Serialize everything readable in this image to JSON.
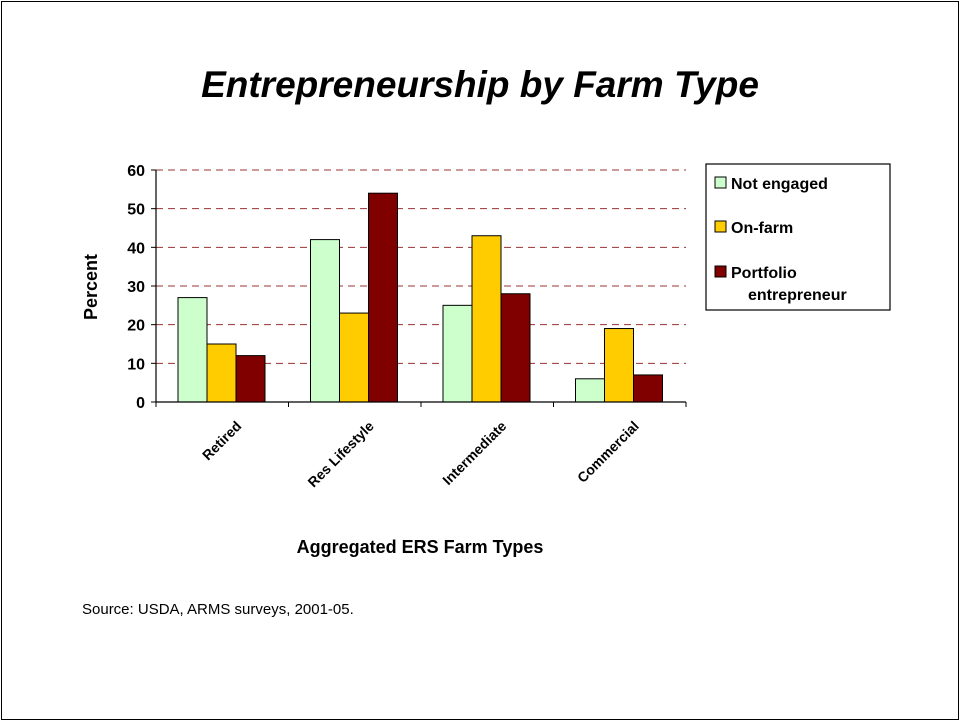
{
  "slide": {
    "title": "Entrepreneurship by Farm Type",
    "source": "Source: USDA, ARMS surveys, 2001-05."
  },
  "chart_data": {
    "type": "bar",
    "title": "",
    "xlabel": "Aggregated ERS Farm Types",
    "ylabel": "Percent",
    "categories": [
      "Retired",
      "Res Lifestyle",
      "Intermediate",
      "Commercial"
    ],
    "series": [
      {
        "name": "Not engaged",
        "color": "#ccffcc",
        "values": [
          27,
          42,
          25,
          6
        ]
      },
      {
        "name": "On-farm",
        "color": "#ffcc00",
        "values": [
          15,
          23,
          43,
          19
        ]
      },
      {
        "name": "Portfolio entrepreneur",
        "color": "#800000",
        "values": [
          12,
          54,
          28,
          7
        ]
      }
    ],
    "ylim": [
      0,
      60
    ],
    "yticks": [
      "0",
      "10",
      "20",
      "30",
      "40",
      "50",
      "60"
    ],
    "grid": true,
    "gridline_color": "#993333",
    "legend_placement": "right",
    "legend_label_lines": [
      [
        "Not engaged"
      ],
      [
        "On-farm"
      ],
      [
        "Portfolio",
        "entrepreneur"
      ]
    ]
  }
}
